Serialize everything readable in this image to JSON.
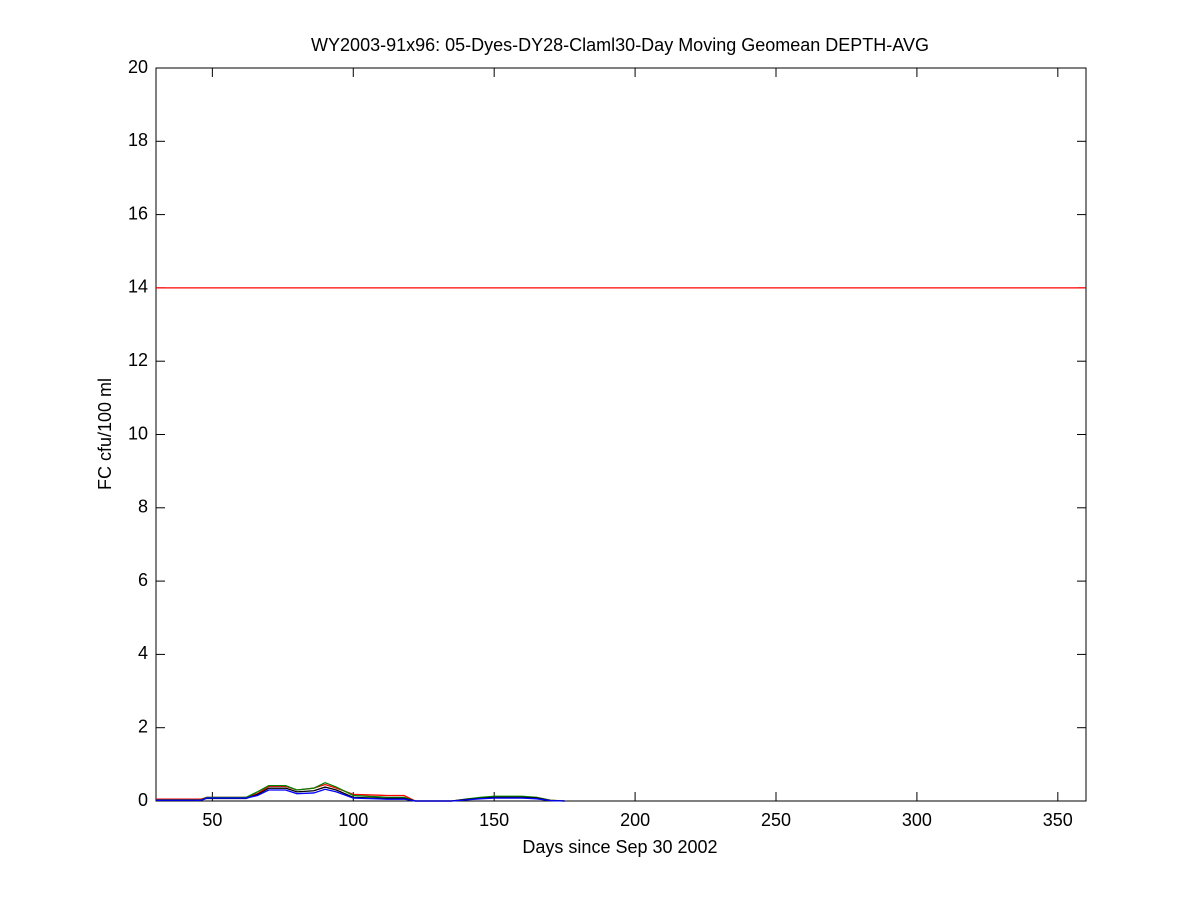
{
  "chart_data": {
    "type": "line",
    "title": "WY2003-91x96: 05-Dyes-DY28-Claml30-Day Moving Geomean DEPTH-AVG",
    "xlabel": "Days since Sep 30 2002",
    "ylabel": "FC cfu/100 ml",
    "xlim": [
      30,
      360
    ],
    "ylim": [
      0,
      20
    ],
    "xticks": [
      50,
      100,
      150,
      200,
      250,
      300,
      350
    ],
    "yticks": [
      0,
      2,
      4,
      6,
      8,
      10,
      12,
      14,
      16,
      18,
      20
    ],
    "grid": false,
    "series": [
      {
        "color": "#ff0000",
        "x": [
          30,
          360
        ],
        "values": [
          14,
          14
        ]
      },
      {
        "color": "#ff0000",
        "x": [
          30,
          46,
          48,
          62,
          66,
          70,
          76,
          80,
          86,
          90,
          94,
          100,
          112,
          118,
          122,
          135,
          140,
          145,
          150,
          160,
          165,
          170,
          175
        ],
        "values": [
          0.05,
          0.05,
          0.1,
          0.1,
          0.2,
          0.4,
          0.4,
          0.3,
          0.35,
          0.45,
          0.35,
          0.18,
          0.15,
          0.15,
          0,
          0,
          0.05,
          0.08,
          0.12,
          0.12,
          0.1,
          0.02,
          0
        ]
      },
      {
        "color": "#008000",
        "x": [
          30,
          46,
          48,
          62,
          66,
          70,
          76,
          80,
          86,
          90,
          94,
          100,
          112,
          118,
          122,
          135,
          140,
          145,
          150,
          160,
          165,
          170,
          175
        ],
        "values": [
          0.03,
          0.03,
          0.1,
          0.1,
          0.25,
          0.42,
          0.42,
          0.3,
          0.35,
          0.5,
          0.38,
          0.15,
          0.1,
          0.1,
          0,
          0,
          0.05,
          0.1,
          0.13,
          0.13,
          0.1,
          0.02,
          0
        ]
      },
      {
        "color": "#000000",
        "x": [
          30,
          46,
          48,
          62,
          66,
          70,
          76,
          80,
          86,
          90,
          94,
          100,
          112,
          118,
          122,
          135,
          140,
          145,
          150,
          160,
          165,
          170,
          175
        ],
        "values": [
          0.02,
          0.02,
          0.07,
          0.07,
          0.18,
          0.35,
          0.35,
          0.25,
          0.28,
          0.38,
          0.3,
          0.1,
          0.07,
          0.07,
          0,
          0,
          0.04,
          0.07,
          0.1,
          0.1,
          0.08,
          0.01,
          0
        ]
      },
      {
        "color": "#0000ff",
        "x": [
          30,
          46,
          48,
          62,
          66,
          70,
          76,
          80,
          86,
          90,
          94,
          100,
          112,
          118,
          122,
          135,
          140,
          145,
          150,
          160,
          165,
          170,
          175
        ],
        "values": [
          0.02,
          0.02,
          0.08,
          0.08,
          0.15,
          0.3,
          0.3,
          0.2,
          0.22,
          0.32,
          0.25,
          0.08,
          0.05,
          0.05,
          0,
          0,
          0.03,
          0.06,
          0.08,
          0.08,
          0.06,
          0.01,
          0
        ]
      }
    ]
  }
}
